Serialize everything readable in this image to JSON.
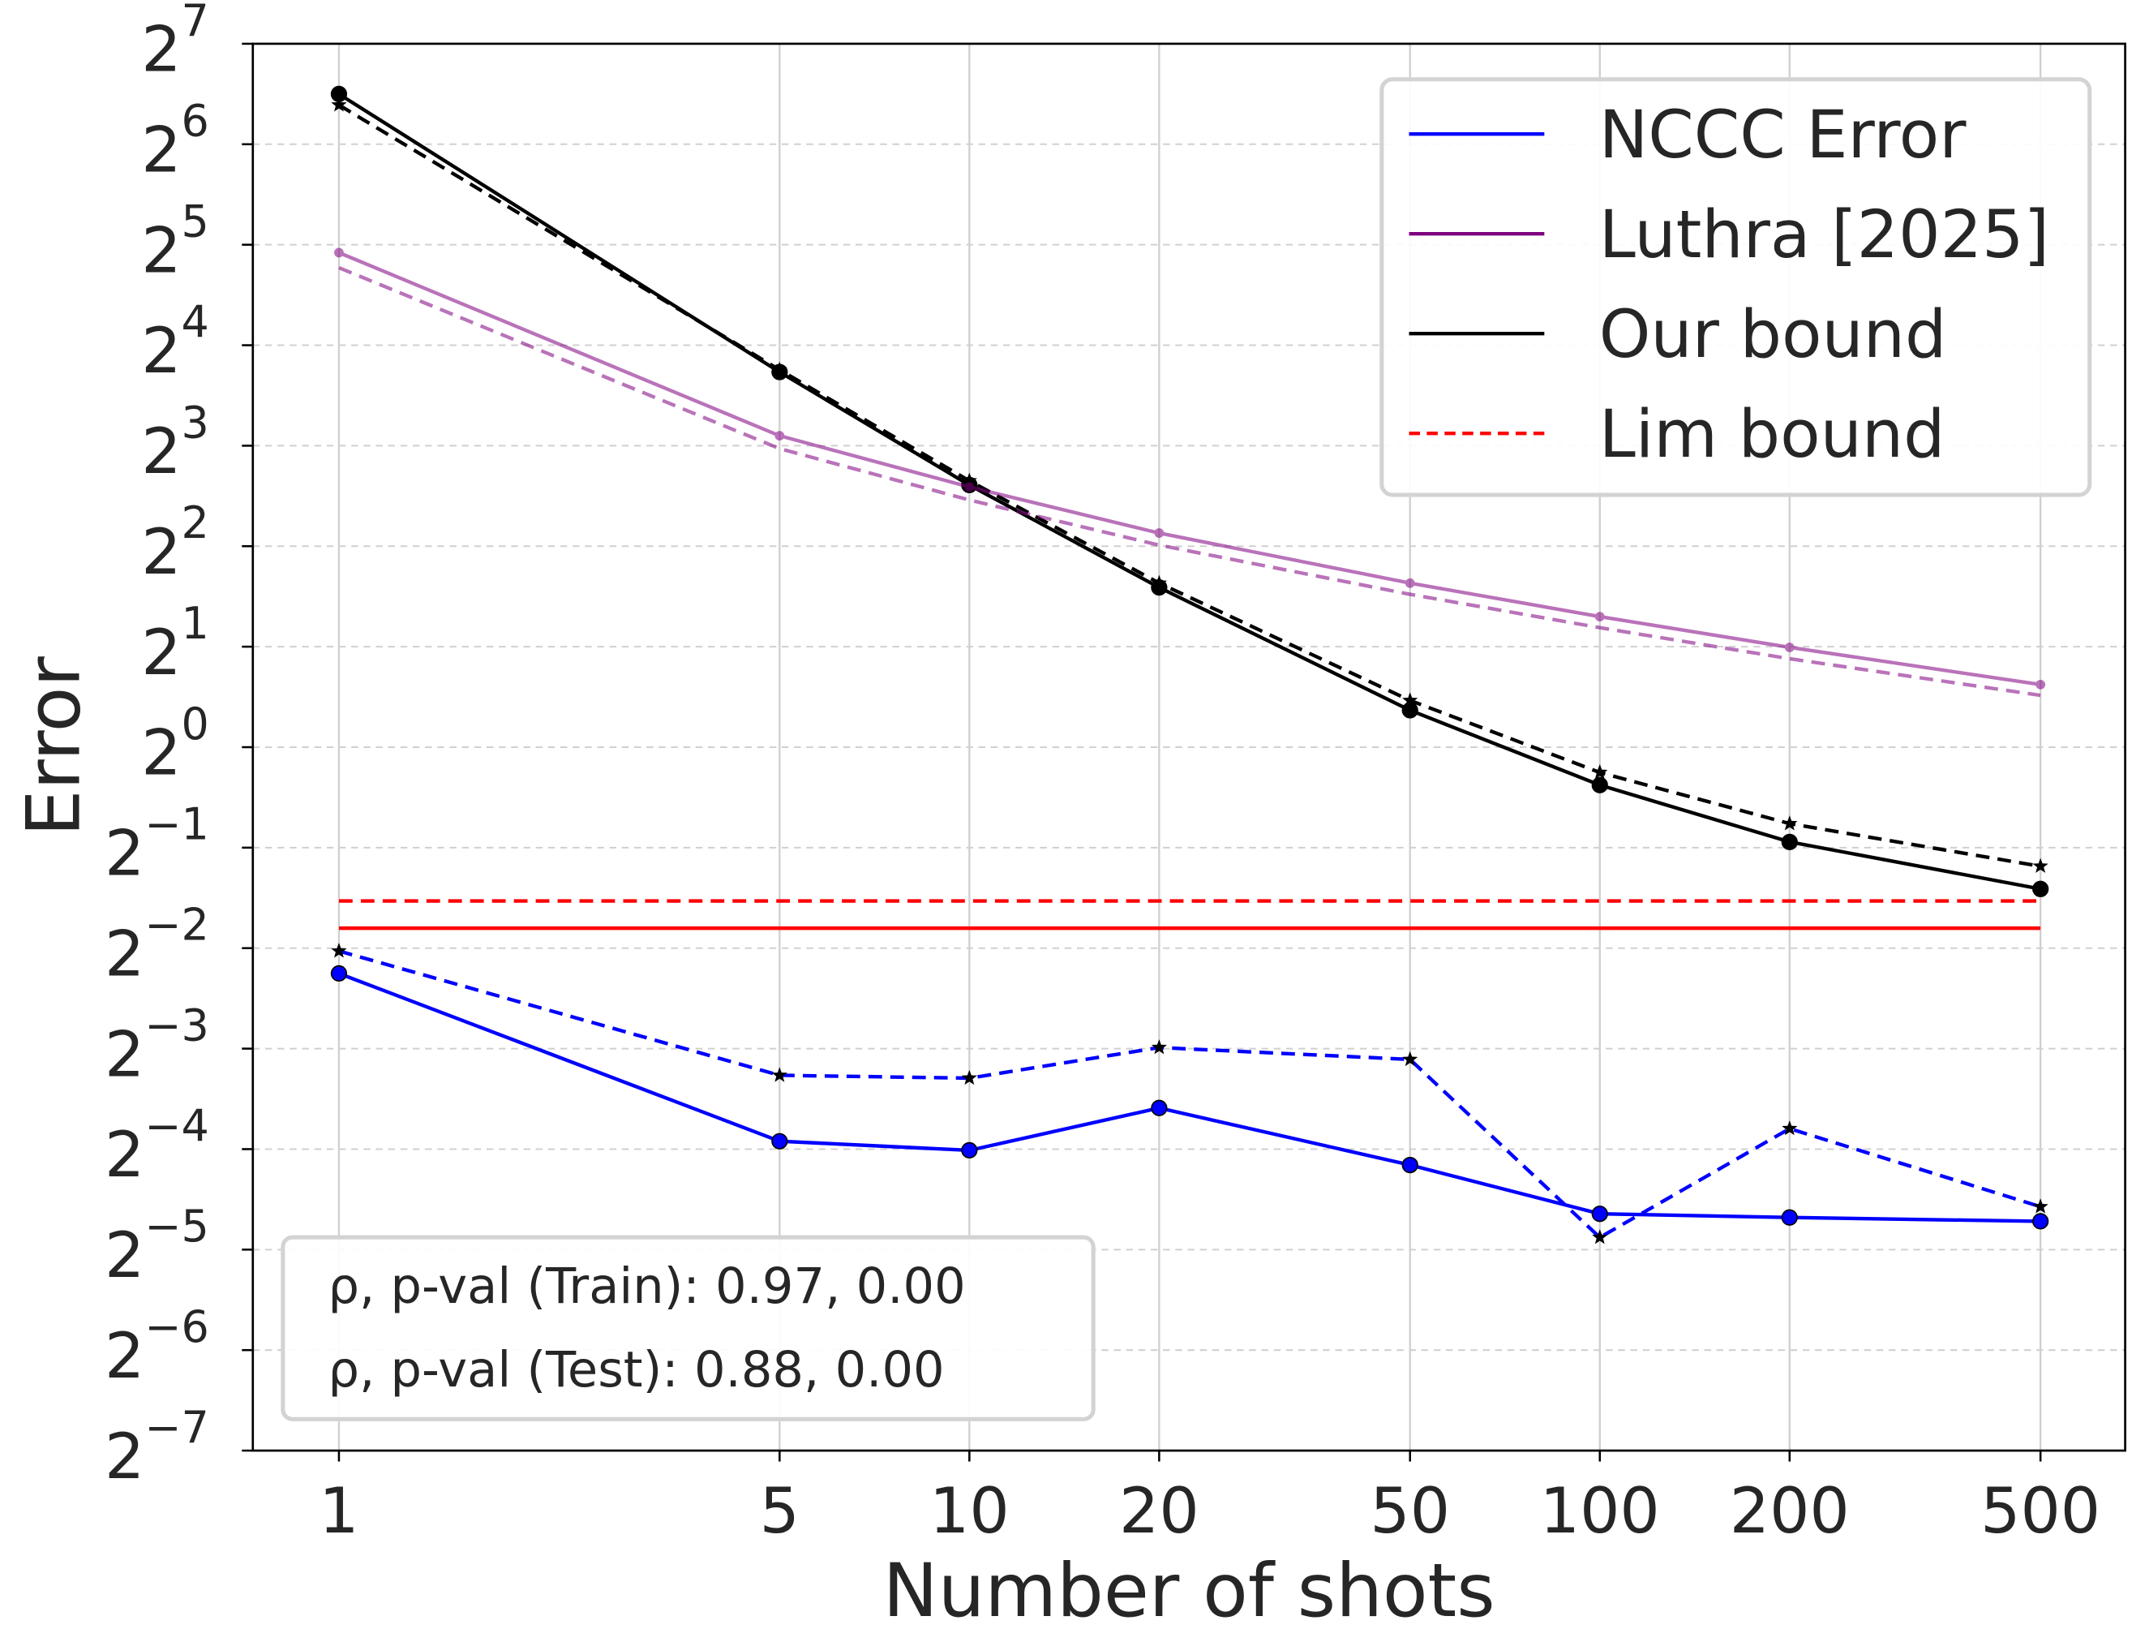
{
  "chart_data": {
    "type": "line",
    "title": "",
    "xlabel": "Number of shots",
    "ylabel": "Error",
    "xscale": "log",
    "yscale": "log2",
    "x": [
      1,
      5,
      10,
      20,
      50,
      100,
      200,
      500
    ],
    "xticks": [
      "1",
      "5",
      "10",
      "20",
      "50",
      "100",
      "200",
      "500"
    ],
    "yticks_exponents": [
      7,
      6,
      5,
      4,
      3,
      2,
      1,
      0,
      -1,
      -2,
      -3,
      -4,
      -5,
      -6,
      -7
    ],
    "yticks_base": "2",
    "ylim": [
      0.0078125,
      128
    ],
    "xlim": [
      0.75,
      650
    ],
    "grid": true,
    "legend_position": "top-right",
    "legend": [
      {
        "label": "NCCC Error",
        "color": "#0000ff",
        "style": "solid"
      },
      {
        "label": "Luthra [2025]",
        "color": "#800080",
        "style": "solid"
      },
      {
        "label": "Our bound",
        "color": "#000000",
        "style": "solid"
      },
      {
        "label": "Lim bound",
        "color": "#ff0000",
        "style": "dashed"
      }
    ],
    "series": [
      {
        "color": "#000000",
        "style": "solid",
        "marker": "circle",
        "opacity": 1,
        "values": [
          90.5,
          13.3,
          6.1,
          3.01,
          1.29,
          0.77,
          0.52,
          0.376
        ]
      },
      {
        "color": "#000000",
        "style": "dashed",
        "marker": "star",
        "opacity": 1,
        "values": [
          83.9,
          13.5,
          6.28,
          3.1,
          1.38,
          0.84,
          0.59,
          0.44
        ]
      },
      {
        "color": "#800080",
        "style": "solid",
        "marker": "circle-small",
        "opacity": 0.55,
        "values": [
          30.3,
          8.57,
          6.02,
          4.38,
          3.1,
          2.46,
          1.99,
          1.54
        ]
      },
      {
        "color": "#800080",
        "style": "dashed",
        "marker": "none",
        "opacity": 0.55,
        "values": [
          27.3,
          7.84,
          5.5,
          4.03,
          2.87,
          2.28,
          1.84,
          1.43
        ]
      },
      {
        "color": "#ff0000",
        "style": "solid",
        "marker": "none",
        "opacity": 1,
        "values": [
          0.287,
          0.287,
          0.287,
          0.287,
          0.287,
          0.287,
          0.287,
          0.287
        ]
      },
      {
        "color": "#ff0000",
        "style": "dashed",
        "marker": "none",
        "opacity": 1,
        "values": [
          0.346,
          0.346,
          0.346,
          0.346,
          0.346,
          0.346,
          0.346,
          0.346
        ]
      },
      {
        "color": "#0000ff",
        "style": "solid",
        "marker": "circle",
        "opacity": 1,
        "values": [
          0.21,
          0.066,
          0.062,
          0.083,
          0.056,
          0.04,
          0.039,
          0.038
        ]
      },
      {
        "color": "#0000ff",
        "style": "dashed",
        "marker": "star",
        "opacity": 1,
        "values": [
          0.245,
          0.104,
          0.102,
          0.126,
          0.116,
          0.034,
          0.072,
          0.042
        ]
      }
    ],
    "annotation": [
      "ρ, p-val (Train): 0.97, 0.00",
      "ρ, p-val (Test): 0.88, 0.00"
    ]
  }
}
